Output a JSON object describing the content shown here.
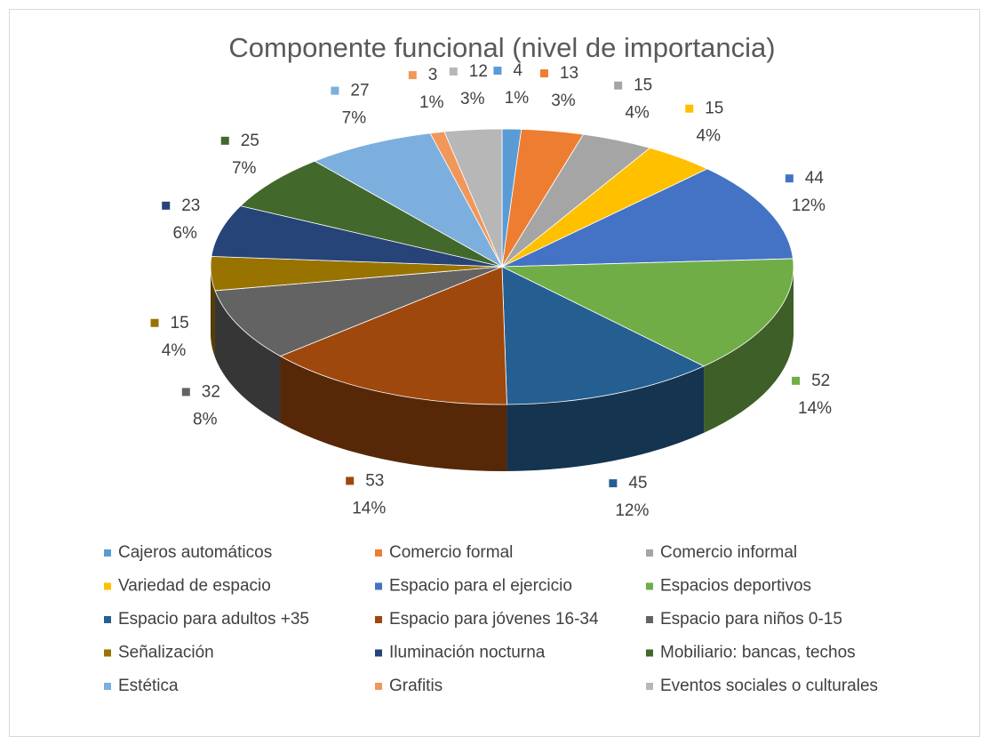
{
  "chart_data": {
    "type": "pie3d",
    "title": "Componente funcional (nivel de importancia)",
    "categories": [
      "Cajeros automáticos",
      "Comercio formal",
      "Comercio informal",
      "Variedad de espacio",
      "Espacio para el ejercicio",
      "Espacios deportivos",
      "Espacio para adultos +35",
      "Espacio para jóvenes 16-34",
      "Espacio para niños 0-15",
      "Señalización",
      "Iluminación nocturna",
      "Mobiliario: bancas, techos",
      "Estética",
      "Grafitis",
      "Eventos sociales o culturales"
    ],
    "values": [
      4,
      13,
      15,
      15,
      44,
      52,
      45,
      53,
      32,
      15,
      23,
      25,
      27,
      3,
      12
    ],
    "percent_labels": [
      "1%",
      "3%",
      "4%",
      "4%",
      "12%",
      "14%",
      "12%",
      "14%",
      "8%",
      "4%",
      "6%",
      "7%",
      "7%",
      "1%",
      "3%"
    ],
    "colors": [
      "#5b9bd5",
      "#ed7d31",
      "#a5a5a5",
      "#ffc000",
      "#4472c4",
      "#70ad47",
      "#255e91",
      "#9e480e",
      "#636363",
      "#997300",
      "#264478",
      "#43682b",
      "#7cafdd",
      "#f1975a",
      "#b7b7b7"
    ],
    "legend": "bottom"
  }
}
